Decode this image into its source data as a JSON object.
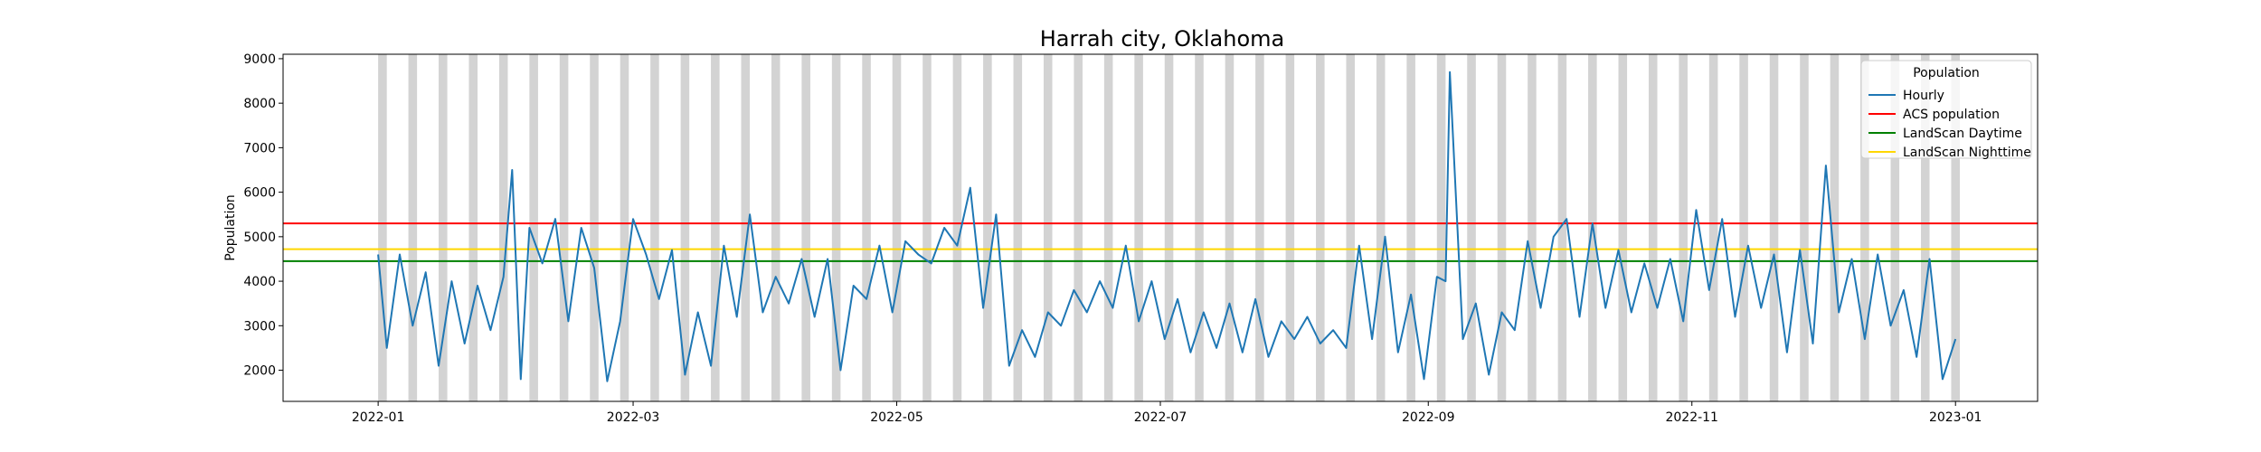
{
  "chart_data": {
    "type": "line",
    "title": "Harrah city, Oklahoma",
    "xlabel": "",
    "ylabel": "Population",
    "x_range": [
      "2021-12-10",
      "2023-01-20"
    ],
    "ylim": [
      1300,
      9100
    ],
    "x_ticks": [
      "2022-01-01",
      "2022-03-01",
      "2022-05-01",
      "2022-07-01",
      "2022-09-01",
      "2022-11-01",
      "2023-01-01"
    ],
    "x_tick_labels": [
      "2022-01",
      "2022-03",
      "2022-05",
      "2022-07",
      "2022-09",
      "2022-11",
      "2023-01"
    ],
    "y_ticks": [
      2000,
      3000,
      4000,
      5000,
      6000,
      7000,
      8000,
      9000
    ],
    "weekend_shading": {
      "first_start": "2022-01-01",
      "interval_days": 7,
      "span_days": 2,
      "end": "2023-01-01",
      "color": "#d3d3d3"
    },
    "legend": {
      "title": "Population",
      "placement": "top-right",
      "entries": [
        "Hourly",
        "ACS population",
        "LandScan Daytime",
        "LandScan Nighttime"
      ]
    },
    "series": [
      {
        "name": "Hourly",
        "color": "#1f77b4",
        "x": [
          "2022-01-01",
          "2022-01-03",
          "2022-01-06",
          "2022-01-09",
          "2022-01-12",
          "2022-01-15",
          "2022-01-18",
          "2022-01-21",
          "2022-01-24",
          "2022-01-27",
          "2022-01-30",
          "2022-02-01",
          "2022-02-03",
          "2022-02-05",
          "2022-02-08",
          "2022-02-11",
          "2022-02-14",
          "2022-02-17",
          "2022-02-20",
          "2022-02-23",
          "2022-02-26",
          "2022-03-01",
          "2022-03-04",
          "2022-03-07",
          "2022-03-10",
          "2022-03-13",
          "2022-03-16",
          "2022-03-19",
          "2022-03-22",
          "2022-03-25",
          "2022-03-28",
          "2022-03-31",
          "2022-04-03",
          "2022-04-06",
          "2022-04-09",
          "2022-04-12",
          "2022-04-15",
          "2022-04-18",
          "2022-04-21",
          "2022-04-24",
          "2022-04-27",
          "2022-04-30",
          "2022-05-03",
          "2022-05-06",
          "2022-05-09",
          "2022-05-12",
          "2022-05-15",
          "2022-05-18",
          "2022-05-21",
          "2022-05-24",
          "2022-05-27",
          "2022-05-30",
          "2022-06-02",
          "2022-06-05",
          "2022-06-08",
          "2022-06-11",
          "2022-06-14",
          "2022-06-17",
          "2022-06-20",
          "2022-06-23",
          "2022-06-26",
          "2022-06-29",
          "2022-07-02",
          "2022-07-05",
          "2022-07-08",
          "2022-07-11",
          "2022-07-14",
          "2022-07-17",
          "2022-07-20",
          "2022-07-23",
          "2022-07-26",
          "2022-07-29",
          "2022-08-01",
          "2022-08-04",
          "2022-08-07",
          "2022-08-10",
          "2022-08-13",
          "2022-08-16",
          "2022-08-19",
          "2022-08-22",
          "2022-08-25",
          "2022-08-28",
          "2022-08-31",
          "2022-09-03",
          "2022-09-05",
          "2022-09-06",
          "2022-09-09",
          "2022-09-12",
          "2022-09-15",
          "2022-09-18",
          "2022-09-21",
          "2022-09-24",
          "2022-09-27",
          "2022-09-30",
          "2022-10-03",
          "2022-10-06",
          "2022-10-09",
          "2022-10-12",
          "2022-10-15",
          "2022-10-18",
          "2022-10-21",
          "2022-10-24",
          "2022-10-27",
          "2022-10-30",
          "2022-11-02",
          "2022-11-05",
          "2022-11-08",
          "2022-11-11",
          "2022-11-14",
          "2022-11-17",
          "2022-11-20",
          "2022-11-23",
          "2022-11-26",
          "2022-11-29",
          "2022-12-02",
          "2022-12-05",
          "2022-12-08",
          "2022-12-11",
          "2022-12-14",
          "2022-12-17",
          "2022-12-20",
          "2022-12-23",
          "2022-12-26",
          "2022-12-29",
          "2023-01-01"
        ],
        "values": [
          4600,
          2500,
          4600,
          3000,
          4200,
          2100,
          4000,
          2600,
          3900,
          2900,
          4100,
          6500,
          1800,
          5200,
          4400,
          5400,
          3100,
          5200,
          4300,
          1750,
          3100,
          5400,
          4600,
          3600,
          4700,
          1900,
          3300,
          2100,
          4800,
          3200,
          5500,
          3300,
          4100,
          3500,
          4500,
          3200,
          4500,
          2000,
          3900,
          3600,
          4800,
          3300,
          4900,
          4600,
          4400,
          5200,
          4800,
          6100,
          3400,
          5500,
          2100,
          2900,
          2300,
          3300,
          3000,
          3800,
          3300,
          4000,
          3400,
          4800,
          3100,
          4000,
          2700,
          3600,
          2400,
          3300,
          2500,
          3500,
          2400,
          3600,
          2300,
          3100,
          2700,
          3200,
          2600,
          2900,
          2500,
          4800,
          2700,
          5000,
          2400,
          3700,
          1800,
          4100,
          4000,
          8700,
          2700,
          3500,
          1900,
          3300,
          2900,
          4900,
          3400,
          5000,
          5400,
          3200,
          5300,
          3400,
          4700,
          3300,
          4400,
          3400,
          4500,
          3100,
          5600,
          3800,
          5400,
          3200,
          4800,
          3400,
          4600,
          2400,
          4700,
          2600,
          6600,
          3300,
          4500,
          2700,
          4600,
          3000,
          3800,
          2300,
          4500,
          1800,
          2700
        ]
      },
      {
        "name": "ACS population",
        "color": "#ff0000",
        "value": 5300
      },
      {
        "name": "LandScan Daytime",
        "color": "#008000",
        "value": 4450
      },
      {
        "name": "LandScan Nighttime",
        "color": "#ffd700",
        "value": 4720
      }
    ]
  }
}
